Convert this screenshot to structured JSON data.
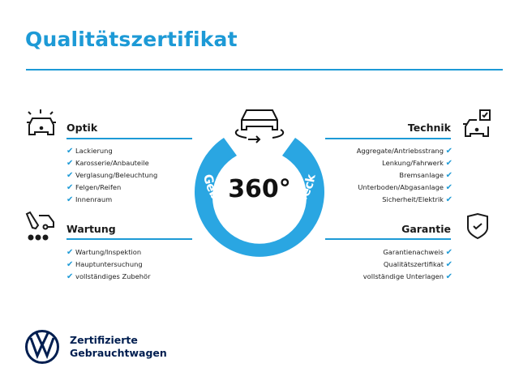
{
  "title": "Qualitätszertifikat",
  "ring": {
    "big": "360°",
    "arc_text": "Gebrauchtwagen-Check",
    "color": "#2aa6e2"
  },
  "accent": "#1d9ad6",
  "sections": {
    "optik": {
      "heading": "Optik",
      "items": [
        "Lackierung",
        "Karosserie/Anbauteile",
        "Verglasung/Beleuchtung",
        "Felgen/Reifen",
        "Innenraum"
      ]
    },
    "wartung": {
      "heading": "Wartung",
      "items": [
        "Wartung/Inspektion",
        "Hauptuntersuchung",
        "vollständiges Zubehör"
      ]
    },
    "technik": {
      "heading": "Technik",
      "items": [
        "Aggregate/Antriebsstrang",
        "Lenkung/Fahrwerk",
        "Bremsanlage",
        "Unterboden/Abgasanlage",
        "Sicherheit/Elektrik"
      ]
    },
    "garantie": {
      "heading": "Garantie",
      "items": [
        "Garantienachweis",
        "Qualitätszertifikat",
        "vollständige Unterlagen"
      ]
    }
  },
  "check_glyph": "✔",
  "brand": {
    "line1": "Zertifizierte",
    "line2": "Gebrauchtwagen"
  }
}
